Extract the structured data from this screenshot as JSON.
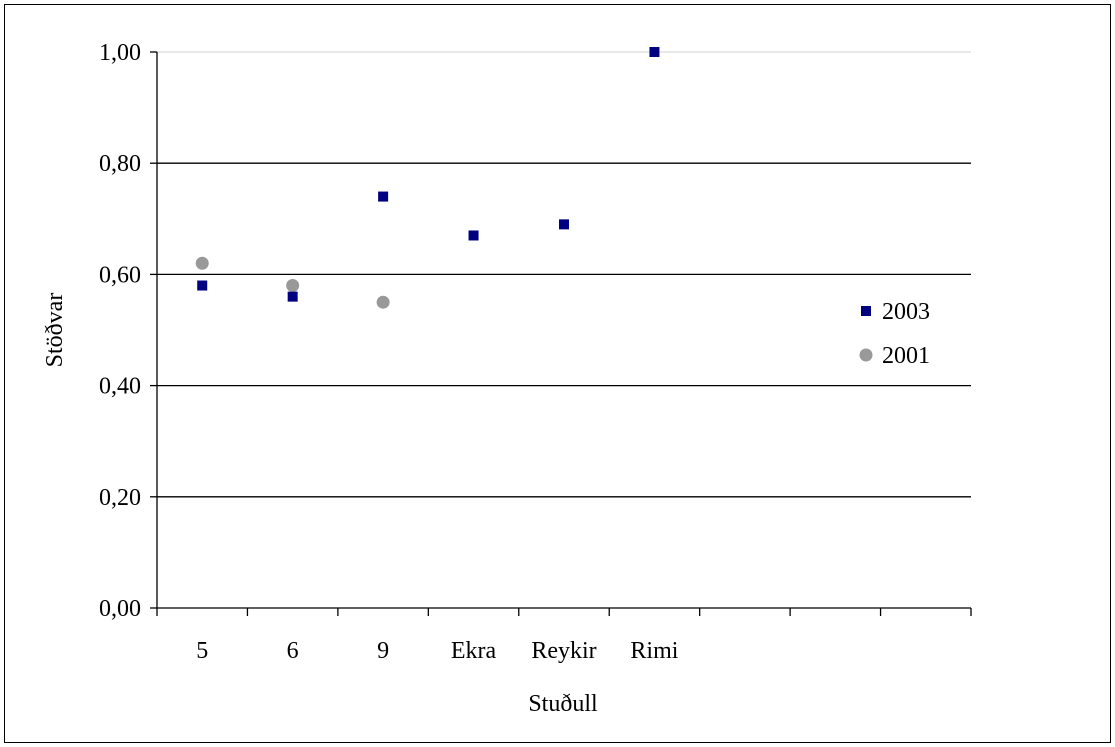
{
  "chart_data": {
    "type": "scatter",
    "title": "",
    "xlabel": "Stuðull",
    "ylabel": "Stöðvar",
    "categories": [
      "5",
      "6",
      "9",
      "Ekra",
      "Reykir",
      "Rimi",
      "",
      "",
      ""
    ],
    "ylim": [
      0,
      1.0
    ],
    "yticks": [
      "0,00",
      "0,20",
      "0,40",
      "0,60",
      "0,80",
      "1,00"
    ],
    "grid": true,
    "legend_position": "right",
    "series": [
      {
        "name": "2003",
        "marker": "square",
        "color": "#000080",
        "values": [
          0.58,
          0.56,
          0.74,
          0.67,
          0.69,
          1.0,
          null,
          null,
          null
        ]
      },
      {
        "name": "2001",
        "marker": "circle",
        "color": "#999999",
        "values": [
          0.62,
          0.58,
          0.55,
          null,
          null,
          null,
          null,
          null,
          null
        ]
      }
    ]
  }
}
